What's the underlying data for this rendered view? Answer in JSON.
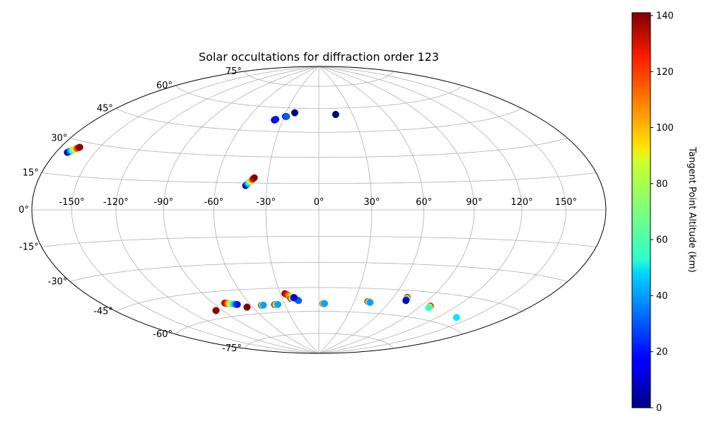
{
  "chart_data": {
    "type": "scatter",
    "projection": "hammer",
    "title": "Solar occultations for diffraction order 123",
    "lon_ticks": [
      "-150°",
      "-120°",
      "-90°",
      "-60°",
      "-30°",
      "0°",
      "30°",
      "60°",
      "90°",
      "120°",
      "150°"
    ],
    "lon_tick_values": [
      -150,
      -120,
      -90,
      -60,
      -30,
      0,
      30,
      60,
      90,
      120,
      150
    ],
    "lat_ticks": [
      "-75°",
      "-60°",
      "-45°",
      "-30°",
      "-15°",
      "0°",
      "15°",
      "30°",
      "45°",
      "60°",
      "75°"
    ],
    "lat_tick_values": [
      -75,
      -60,
      -45,
      -30,
      -15,
      0,
      15,
      30,
      45,
      60,
      75
    ],
    "grid": true,
    "colorbar": {
      "label": "Tangent Point Altitude (km)",
      "min": 0,
      "max": 141,
      "ticks": [
        "0",
        "20",
        "40",
        "60",
        "80",
        "100",
        "120",
        "140"
      ],
      "tick_values": [
        0,
        20,
        40,
        60,
        80,
        100,
        120,
        140
      ],
      "colormap": "jet"
    },
    "tracks": [
      {
        "lon_start": -171.0,
        "lat_start": 24.5,
        "alt_start": 0,
        "lon_end": -165.0,
        "lat_end": 27.5,
        "alt_end": 140
      },
      {
        "lon_start": -42.5,
        "lat_start": 13.5,
        "alt_start": 0,
        "lon_end": -38.0,
        "lat_end": 18.0,
        "alt_end": 140
      },
      {
        "lon_start": -22.0,
        "lat_start": 57.0,
        "alt_start": 0,
        "lon_end": -22.0,
        "lat_end": 57.0,
        "alt_end": 0
      },
      {
        "lon_start": -37.0,
        "lat_start": 52.0,
        "alt_start": 0,
        "lon_end": -36.0,
        "lat_end": 52.5,
        "alt_end": 20
      },
      {
        "lon_start": -29.0,
        "lat_start": 54.5,
        "alt_start": 0,
        "lon_end": -28.0,
        "lat_end": 54.5,
        "alt_end": 30
      },
      {
        "lon_start": 15.0,
        "lat_start": 56.0,
        "alt_start": 0,
        "lon_end": 15.0,
        "lat_end": 56.0,
        "alt_end": 0
      },
      {
        "lon_start": -96.0,
        "lat_start": -55.5,
        "alt_start": 140,
        "lon_end": -96.0,
        "lat_end": -55.5,
        "alt_end": 140
      },
      {
        "lon_start": -80.5,
        "lat_start": -52.0,
        "alt_start": 140,
        "lon_end": -71.0,
        "lat_end": -53.5,
        "alt_end": 20
      },
      {
        "lon_start": -65.0,
        "lat_start": -55.5,
        "alt_start": 140,
        "lon_end": -65.0,
        "lat_end": -55.5,
        "alt_end": 140
      },
      {
        "lon_start": -51.0,
        "lat_start": -55.0,
        "alt_start": 140,
        "lon_end": -49.0,
        "lat_end": -55.0,
        "alt_end": 40
      },
      {
        "lon_start": -39.0,
        "lat_start": -55.0,
        "alt_start": 140,
        "lon_end": -36.0,
        "lat_end": -55.0,
        "alt_end": 40
      },
      {
        "lon_start": -26.5,
        "lat_start": -48.5,
        "alt_start": 140,
        "lon_end": -17.0,
        "lat_end": -53.0,
        "alt_end": 30
      },
      {
        "lon_start": -23.0,
        "lat_start": -51.5,
        "alt_start": 140,
        "lon_end": -20.0,
        "lat_end": -51.0,
        "alt_end": 10
      },
      {
        "lon_start": 3.5,
        "lat_start": -55.0,
        "alt_start": 140,
        "lon_end": 5.0,
        "lat_end": -55.0,
        "alt_end": 40
      },
      {
        "lon_start": 41.5,
        "lat_start": -53.0,
        "alt_start": 140,
        "lon_end": 44.0,
        "lat_end": -53.5,
        "alt_end": 40
      },
      {
        "lon_start": 71.0,
        "lat_start": -49.0,
        "alt_start": 140,
        "lon_end": 72.5,
        "lat_end": -51.0,
        "alt_end": 10
      },
      {
        "lon_start": 98.0,
        "lat_start": -52.5,
        "alt_start": 140,
        "lon_end": 98.5,
        "lat_end": -53.5,
        "alt_end": 60
      },
      {
        "lon_start": 137.0,
        "lat_start": -55.5,
        "alt_start": 140,
        "lon_end": 137.0,
        "lat_end": -55.5,
        "alt_end": 50
      }
    ]
  }
}
